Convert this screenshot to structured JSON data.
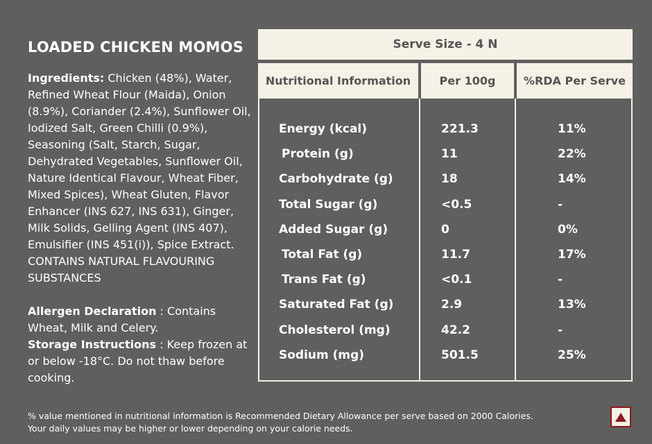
{
  "product": {
    "title": "LOADED CHICKEN MOMOS",
    "ingredients_label": "Ingredients:",
    "ingredients_text": " Chicken (48%), Water, Refined Wheat Flour (Maida), Onion (8.9%), Coriander (2.4%), Sunflower Oil, Iodized Salt, Green Chilli (0.9%), Seasoning (Salt, Starch, Sugar, Dehydrated Vegetables, Sunflower Oil, Nature Identical Flavour, Wheat Fiber, Mixed Spices), Wheat Gluten, Flavor Enhancer (INS 627, INS 631), Ginger, Milk Solids, Gelling Agent (INS 407), Emulsifier (INS 451(i)), Spice Extract. CONTAINS NATURAL FLAVOURING SUBSTANCES",
    "allergen_label": "Allergen Declaration",
    "allergen_text": " : Contains Wheat, Milk and Celery.",
    "storage_label": "Storage Instructions",
    "storage_text": " : Keep frozen at or below -18°C. Do not thaw before cooking."
  },
  "nutrition": {
    "serve_size": "Serve Size - 4 N",
    "headers": [
      "Nutritional Information",
      "Per 100g",
      "%RDA Per Serve"
    ],
    "rows": [
      {
        "name": "Energy (kcal)",
        "per100": "221.3",
        "rda": "11%"
      },
      {
        "name": "Protein (g)",
        "per100": "11",
        "rda": "22%"
      },
      {
        "name": "Carbohydrate (g)",
        "per100": "18",
        "rda": "14%"
      },
      {
        "name": "Total Sugar (g)",
        "per100": "<0.5",
        "rda": "-"
      },
      {
        "name": "Added Sugar (g)",
        "per100": "0",
        "rda": "0%"
      },
      {
        "name": "Total Fat (g)",
        "per100": "11.7",
        "rda": "17%"
      },
      {
        "name": "Trans Fat (g)",
        "per100": "<0.1",
        "rda": "-"
      },
      {
        "name": "Saturated Fat (g)",
        "per100": "2.9",
        "rda": "13%"
      },
      {
        "name": "Cholesterol (mg)",
        "per100": "42.2",
        "rda": "-"
      },
      {
        "name": "Sodium (mg)",
        "per100": "501.5",
        "rda": "25%"
      }
    ]
  },
  "footnote": {
    "line1": "% value mentioned in nutritional information is Recommended Dietary Allowance per serve based on 2000 Calories.",
    "line2": "Your daily values may be higher or lower depending on your calorie needs."
  },
  "colors": {
    "background": "#5f5f5f",
    "panel": "#f6f1e6",
    "accent": "#8a1b20"
  }
}
